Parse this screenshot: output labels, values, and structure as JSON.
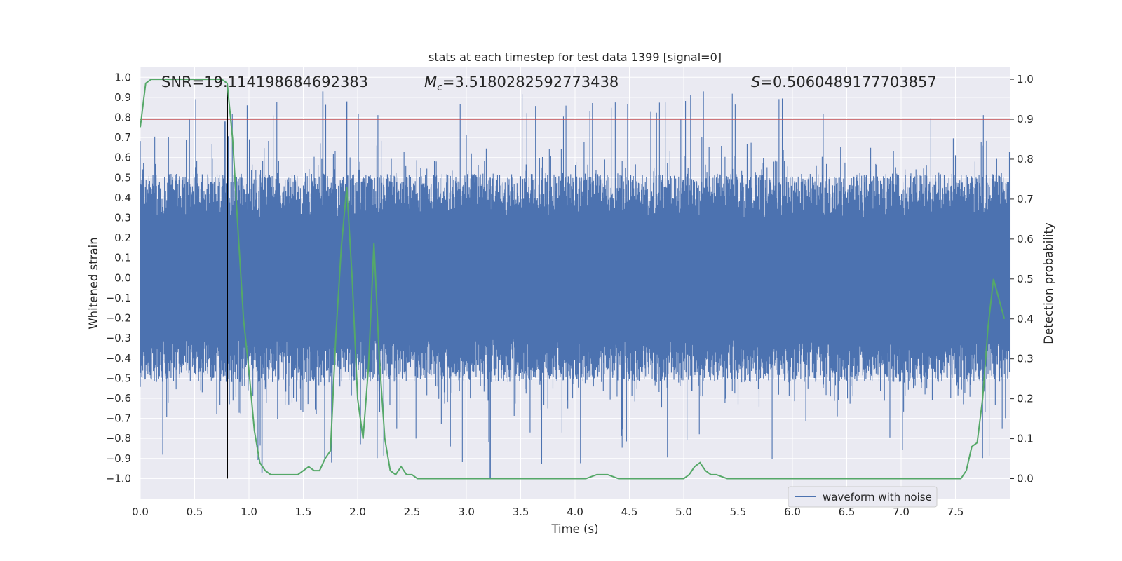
{
  "chart_data": {
    "type": "line",
    "title": "stats at each timestep for test data 1399 [signal=0]",
    "xlabel": "Time (s)",
    "ylabel_left": "Whitened strain",
    "ylabel_right": "Detection probability",
    "xlim": [
      0.0,
      8.0
    ],
    "ylim_left": [
      -1.1,
      1.05
    ],
    "ylim_right": [
      -0.05,
      1.03
    ],
    "x_ticks": [
      "0.0",
      "0.5",
      "1.0",
      "1.5",
      "2.0",
      "2.5",
      "3.0",
      "3.5",
      "4.0",
      "4.5",
      "5.0",
      "5.5",
      "6.0",
      "6.5",
      "7.0",
      "7.5"
    ],
    "y_left_ticks": [
      "1.0",
      "0.9",
      "0.8",
      "0.7",
      "0.6",
      "0.5",
      "0.4",
      "0.3",
      "0.2",
      "0.1",
      "0.0",
      "-0.1",
      "-0.2",
      "-0.3",
      "-0.4",
      "-0.5",
      "-0.6",
      "-0.7",
      "-0.8",
      "-0.9",
      "-1.0"
    ],
    "y_right_ticks": [
      "1.0",
      "0.9",
      "0.8",
      "0.7",
      "0.6",
      "0.5",
      "0.4",
      "0.3",
      "0.2",
      "0.1",
      "0.0"
    ],
    "annotations": {
      "snr_label": "SNR=19.114198684692383",
      "mc_symbol": "M",
      "mc_sub": "c",
      "mc_value": "=3.5180282592773438",
      "s_symbol": "S",
      "s_value": "=0.5060489177703857"
    },
    "threshold": {
      "value": 0.9,
      "axis": "right",
      "color": "#c44e52"
    },
    "marker_time": 0.8,
    "series": [
      {
        "name": "waveform with noise",
        "axis": "left",
        "color": "#4c72b0",
        "style": "noise band, whitened strain roughly within -1.0 to 0.95"
      },
      {
        "name": "detection probability",
        "axis": "right",
        "color": "#55a868",
        "x": [
          0.0,
          0.05,
          0.1,
          0.2,
          0.3,
          0.4,
          0.5,
          0.6,
          0.7,
          0.75,
          0.8,
          0.85,
          0.9,
          0.95,
          1.0,
          1.05,
          1.1,
          1.15,
          1.2,
          1.3,
          1.4,
          1.45,
          1.5,
          1.55,
          1.6,
          1.65,
          1.7,
          1.75,
          1.8,
          1.85,
          1.9,
          1.95,
          2.0,
          2.05,
          2.1,
          2.15,
          2.2,
          2.25,
          2.3,
          2.35,
          2.4,
          2.45,
          2.5,
          2.55,
          2.6,
          2.7,
          2.8,
          2.9,
          3.0,
          3.1,
          3.2,
          3.3,
          3.4,
          3.5,
          3.6,
          3.7,
          3.8,
          3.9,
          4.0,
          4.1,
          4.2,
          4.3,
          4.4,
          4.5,
          4.6,
          4.7,
          4.8,
          4.9,
          5.0,
          5.05,
          5.1,
          5.15,
          5.2,
          5.25,
          5.3,
          5.4,
          5.5,
          5.6,
          5.8,
          6.0,
          6.2,
          6.4,
          6.6,
          6.8,
          7.0,
          7.2,
          7.4,
          7.5,
          7.55,
          7.6,
          7.65,
          7.7,
          7.75,
          7.8,
          7.85,
          7.9,
          7.95
        ],
        "values": [
          0.88,
          0.99,
          1.0,
          1.0,
          1.0,
          1.0,
          1.0,
          1.0,
          1.0,
          1.0,
          0.99,
          0.85,
          0.62,
          0.4,
          0.27,
          0.12,
          0.04,
          0.02,
          0.01,
          0.01,
          0.01,
          0.01,
          0.02,
          0.03,
          0.02,
          0.02,
          0.05,
          0.07,
          0.36,
          0.58,
          0.73,
          0.5,
          0.2,
          0.1,
          0.28,
          0.59,
          0.3,
          0.1,
          0.02,
          0.01,
          0.03,
          0.01,
          0.01,
          0.0,
          0.0,
          0.0,
          0.0,
          0.0,
          0.0,
          0.0,
          0.0,
          0.0,
          0.0,
          0.0,
          0.0,
          0.0,
          0.0,
          0.0,
          0.0,
          0.0,
          0.01,
          0.01,
          0.0,
          0.0,
          0.0,
          0.0,
          0.0,
          0.0,
          0.0,
          0.01,
          0.03,
          0.04,
          0.02,
          0.01,
          0.01,
          0.0,
          0.0,
          0.0,
          0.0,
          0.0,
          0.0,
          0.0,
          0.0,
          0.0,
          0.0,
          0.0,
          0.0,
          0.0,
          0.0,
          0.02,
          0.08,
          0.09,
          0.2,
          0.38,
          0.5,
          0.45,
          0.4
        ]
      }
    ],
    "legend": {
      "label": "waveform with noise",
      "placement": "lower-right"
    }
  },
  "colors": {
    "plot_bg": "#eaeaf2",
    "grid": "#ffffff",
    "waveform": "#4c72b0",
    "probability": "#55a868",
    "threshold": "#c44e52",
    "marker": "#000000"
  }
}
